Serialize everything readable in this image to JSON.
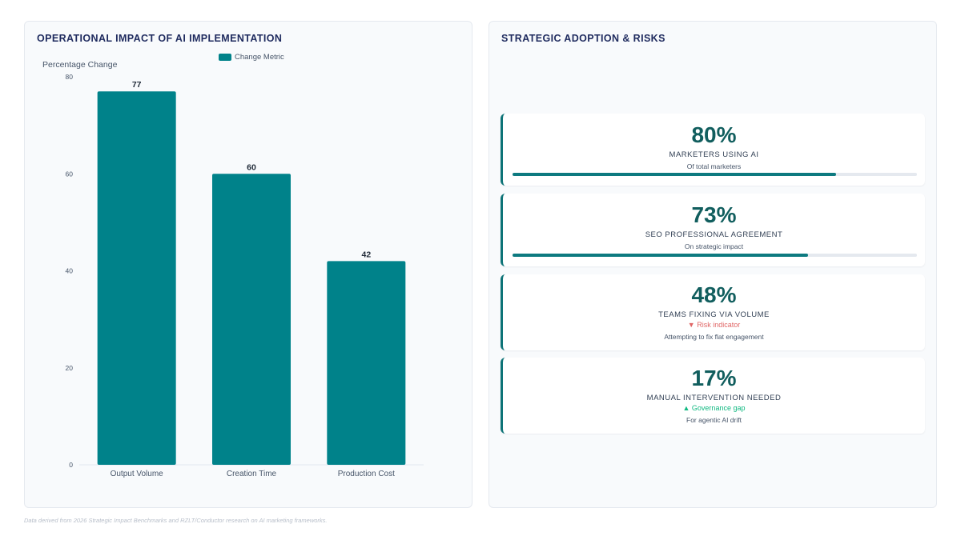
{
  "left_panel": {
    "title": "OPERATIONAL IMPACT OF AI IMPLEMENTATION"
  },
  "chart_data": {
    "type": "bar",
    "categories": [
      "Output Volume",
      "Creation Time",
      "Production Cost"
    ],
    "series": [
      {
        "name": "Change Metric",
        "values": [
          77,
          60,
          42
        ]
      }
    ],
    "ylabel": "Percentage Change",
    "xlabel": "",
    "ylim": [
      0,
      80
    ],
    "yticks": [
      0,
      20,
      40,
      60,
      80
    ],
    "data_labels": true,
    "legend": "top-center",
    "grid": false,
    "bar_color": "#00828a"
  },
  "right_panel": {
    "title": "STRATEGIC ADOPTION & RISKS",
    "cards": [
      {
        "value": "80%",
        "label": "MARKETERS USING AI",
        "sub": "Of total marketers",
        "progress": 0.8
      },
      {
        "value": "73%",
        "label": "SEO PROFESSIONAL AGREEMENT",
        "sub": "On strategic impact",
        "progress": 0.73
      },
      {
        "value": "48%",
        "label": "TEAMS FIXING VIA VOLUME",
        "flag": "▼ Risk indicator",
        "flag_color": "#e06666",
        "sub": "Attempting to fix flat engagement"
      },
      {
        "value": "17%",
        "label": "MANUAL INTERVENTION NEEDED",
        "flag": "▲ Governance gap",
        "flag_color": "#10b981",
        "sub": "For agentic AI drift"
      }
    ]
  },
  "footnote": "Data derived from 2026 Strategic Impact Benchmarks and RZLT/Conductor research on AI marketing frameworks."
}
